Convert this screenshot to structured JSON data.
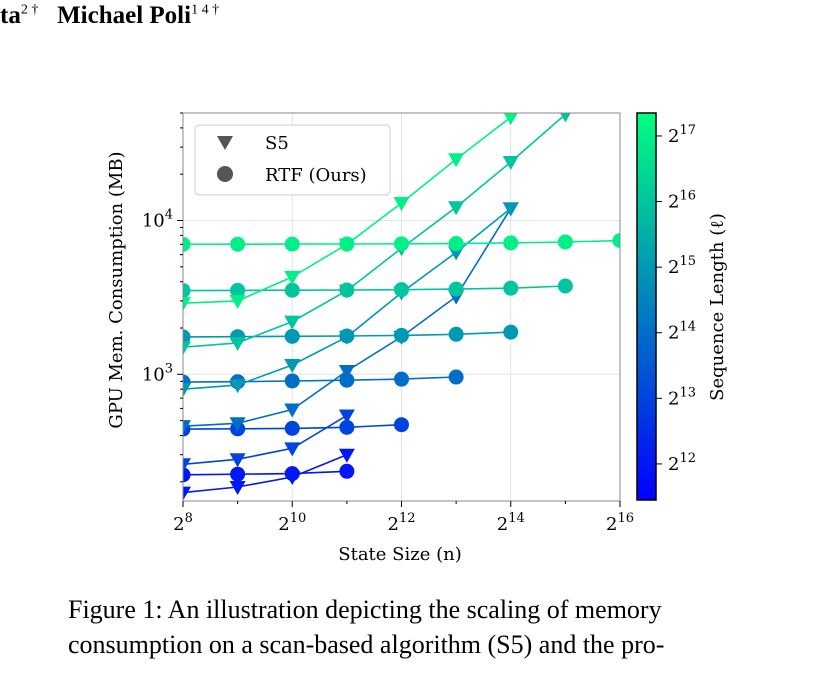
{
  "header": {
    "author_left": "ta",
    "author_left_sup": "2 †",
    "author_right": "Michael Poli",
    "author_right_sup": "1 4 †"
  },
  "caption": {
    "text": "Figure 1: An illustration depicting the scaling of memory consumption on a scan-based algorithm (S5) and the pro-"
  },
  "chart_data": {
    "type": "line",
    "xlabel": "State Size (n)",
    "ylabel": "GPU Mem. Consumption (MB)",
    "x_scale": "log2",
    "y_scale": "log10",
    "xlim": [
      256,
      65536
    ],
    "ylim": [
      150,
      50000
    ],
    "x_ticks": [
      {
        "value": 256,
        "label": "2^8"
      },
      {
        "value": 1024,
        "label": "2^10"
      },
      {
        "value": 4096,
        "label": "2^12"
      },
      {
        "value": 16384,
        "label": "2^14"
      },
      {
        "value": 65536,
        "label": "2^16"
      }
    ],
    "y_ticks": [
      {
        "value": 1000,
        "label": "10^3"
      },
      {
        "value": 10000,
        "label": "10^4"
      }
    ],
    "grid": true,
    "legend": {
      "placement": "top-left",
      "entries": [
        {
          "label": "S5",
          "marker": "triangle-down"
        },
        {
          "label": "RTF (Ours)",
          "marker": "circle"
        }
      ]
    },
    "colorbar": {
      "label": "Sequence Length (ℓ)",
      "colormap": [
        "#0000ff",
        "#00ff80"
      ],
      "range_log2": [
        11.45,
        17.35
      ],
      "ticks": [
        {
          "value": 12,
          "label": "2^12"
        },
        {
          "value": 13,
          "label": "2^13"
        },
        {
          "value": 14,
          "label": "2^14"
        },
        {
          "value": 15,
          "label": "2^15"
        },
        {
          "value": 16,
          "label": "2^16"
        },
        {
          "value": 17,
          "label": "2^17"
        }
      ]
    },
    "series": [
      {
        "method": "S5",
        "seq_len_log2": 12,
        "x": [
          256,
          512,
          1024,
          2048
        ],
        "y": [
          170,
          185,
          215,
          300
        ]
      },
      {
        "method": "RTF",
        "seq_len_log2": 12,
        "x": [
          256,
          512,
          1024,
          2048
        ],
        "y": [
          222,
          224,
          226,
          234
        ]
      },
      {
        "method": "S5",
        "seq_len_log2": 13,
        "x": [
          256,
          512,
          1024,
          2048
        ],
        "y": [
          260,
          280,
          330,
          540
        ]
      },
      {
        "method": "RTF",
        "seq_len_log2": 13,
        "x": [
          256,
          512,
          1024,
          2048,
          4096
        ],
        "y": [
          440,
          442,
          445,
          452,
          470
        ]
      },
      {
        "method": "S5",
        "seq_len_log2": 14,
        "x": [
          256,
          512,
          1024,
          2048,
          4096,
          8192,
          16384
        ],
        "y": [
          460,
          480,
          590,
          1050,
          1750,
          3200,
          12000
        ]
      },
      {
        "method": "RTF",
        "seq_len_log2": 14,
        "x": [
          256,
          512,
          1024,
          2048,
          4096,
          8192
        ],
        "y": [
          890,
          895,
          905,
          915,
          930,
          960
        ]
      },
      {
        "method": "S5",
        "seq_len_log2": 15,
        "x": [
          256,
          512,
          1024,
          2048,
          4096,
          8192,
          16384
        ],
        "y": [
          800,
          850,
          1150,
          1750,
          3400,
          6200,
          12000
        ]
      },
      {
        "method": "RTF",
        "seq_len_log2": 15,
        "x": [
          256,
          512,
          1024,
          2048,
          4096,
          8192,
          16384
        ],
        "y": [
          1750,
          1755,
          1765,
          1775,
          1790,
          1820,
          1880
        ]
      },
      {
        "method": "S5",
        "seq_len_log2": 16,
        "x": [
          256,
          512,
          1024,
          2048,
          4096,
          8192,
          16384,
          32768
        ],
        "y": [
          1500,
          1600,
          2200,
          3500,
          6600,
          12200,
          24000,
          49000
        ]
      },
      {
        "method": "RTF",
        "seq_len_log2": 16,
        "x": [
          256,
          512,
          1024,
          2048,
          4096,
          8192,
          16384,
          32768
        ],
        "y": [
          3500,
          3510,
          3520,
          3530,
          3550,
          3580,
          3630,
          3750
        ]
      },
      {
        "method": "S5",
        "seq_len_log2": 17,
        "x": [
          256,
          512,
          1024,
          2048,
          4096,
          8192,
          16384
        ],
        "y": [
          2900,
          3000,
          4300,
          7000,
          13000,
          25000,
          47000
        ]
      },
      {
        "method": "RTF",
        "seq_len_log2": 17,
        "x": [
          256,
          512,
          1024,
          2048,
          4096,
          8192,
          16384,
          32768,
          65536
        ],
        "y": [
          7000,
          7010,
          7020,
          7030,
          7050,
          7080,
          7150,
          7250,
          7400
        ]
      }
    ]
  }
}
